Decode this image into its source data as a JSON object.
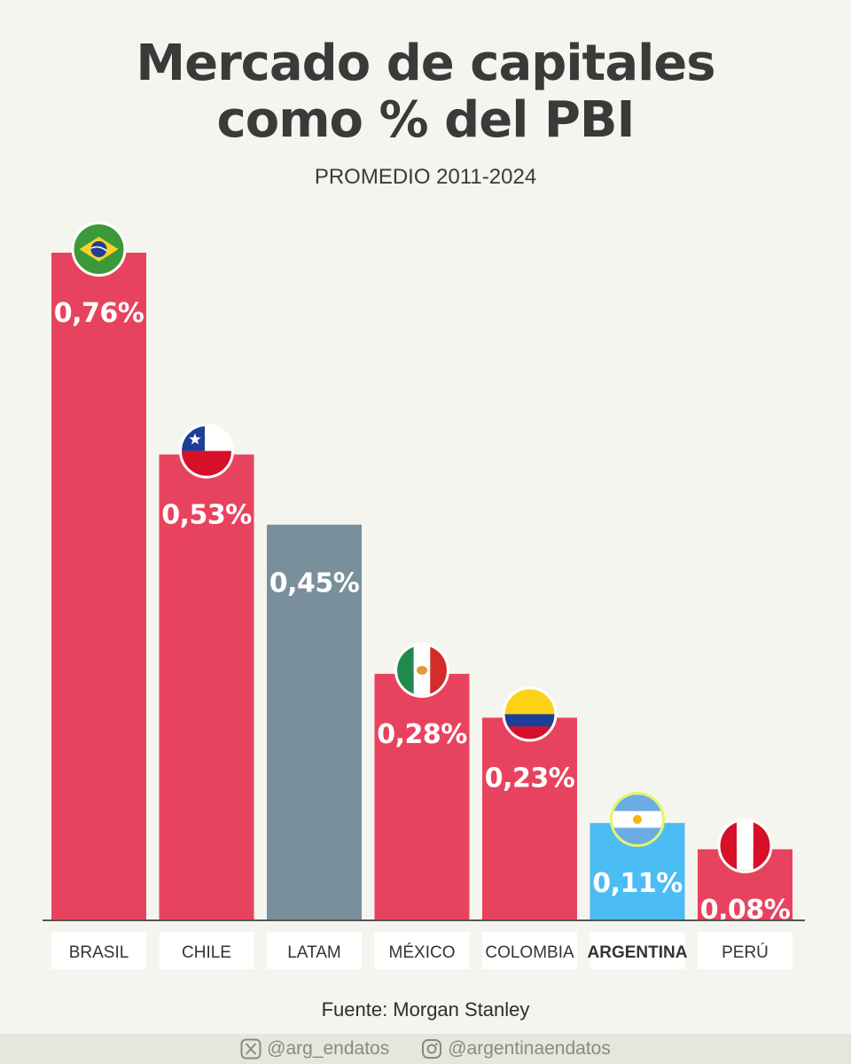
{
  "title_line1": "Mercado de capitales",
  "title_line2": "como % del PBI",
  "subtitle": "PROMEDIO 2011-2024",
  "source": "Fuente: Morgan Stanley",
  "footer": {
    "x_handle": "@arg_endatos",
    "instagram_handle": "@argentinaendatos"
  },
  "colors": {
    "bar_default": "#e8435e",
    "bar_latam": "#798f9c",
    "bar_argentina": "#4cbcf4",
    "axis": "#555555",
    "label_bg": "#ffffff",
    "label_text": "#333333"
  },
  "chart_data": {
    "type": "bar",
    "categories": [
      "BRASIL",
      "CHILE",
      "LATAM",
      "MÉXICO",
      "COLOMBIA",
      "ARGENTINA",
      "PERÚ"
    ],
    "values": [
      0.76,
      0.53,
      0.45,
      0.28,
      0.23,
      0.11,
      0.08
    ],
    "value_labels": [
      "0,76%",
      "0,53%",
      "0,45%",
      "0,28%",
      "0,23%",
      "0,11%",
      "0,08%"
    ],
    "flags": [
      "brazil-flag",
      "chile-flag",
      null,
      "mexico-flag",
      "colombia-flag",
      "argentina-flag",
      "peru-flag"
    ],
    "highlight": "ARGENTINA",
    "ylim": [
      0,
      0.76
    ],
    "grid": false,
    "title": "Mercado de capitales como % del PBI",
    "subtitle": "PROMEDIO 2011-2024",
    "xlabel": "",
    "ylabel": ""
  }
}
